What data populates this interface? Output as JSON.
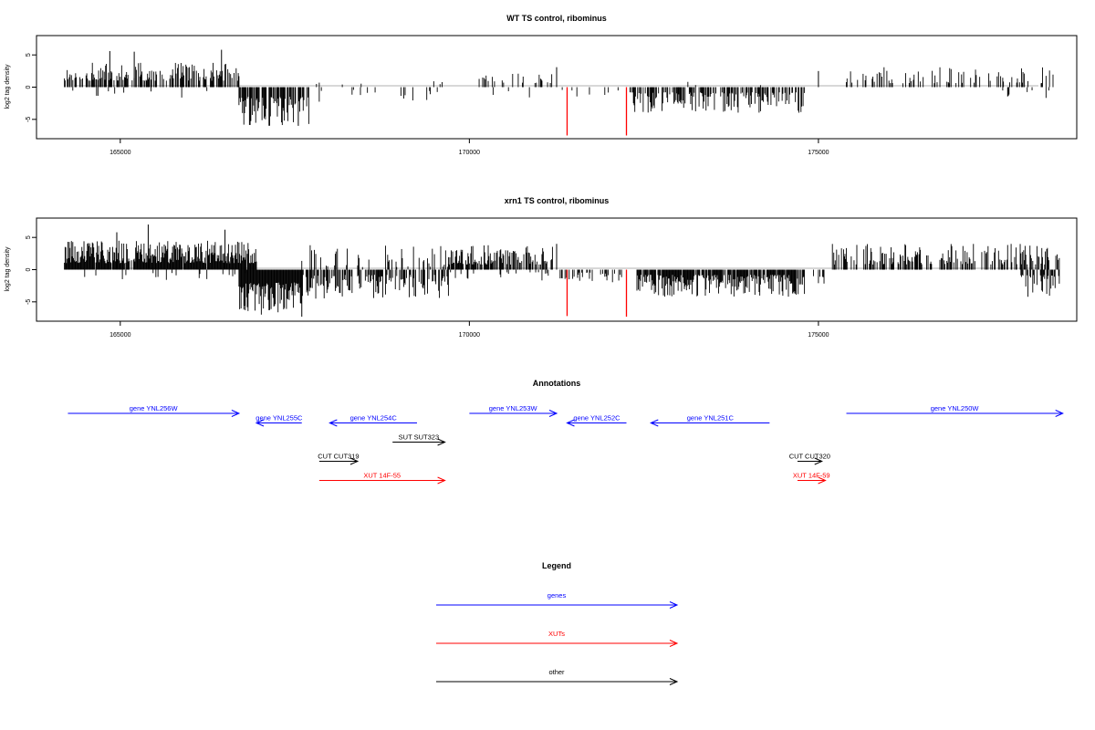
{
  "chart_data": [
    {
      "type": "bar",
      "title": "WT TS control, ribominus",
      "ylabel": "log2 tag density",
      "xlim": [
        163800,
        178700
      ],
      "ylim": [
        -8,
        8
      ],
      "xticks": [
        165000,
        170000,
        175000
      ],
      "xtick_labels": [
        "165000",
        "170000",
        "175000"
      ],
      "yticks": [
        -5,
        0,
        5
      ],
      "ytick_labels": [
        "-5",
        "0",
        "5"
      ],
      "grid": false,
      "colors": {
        "default": "#000000",
        "highlight": "#ff0000"
      },
      "tracks": [
        {
          "start": 164200,
          "end": 166700,
          "sign": 1,
          "density": 0.6,
          "min": 1,
          "max": 3.8,
          "seed": 11
        },
        {
          "start": 164300,
          "end": 166700,
          "sign": -1,
          "density": 0.04,
          "min": 0.5,
          "max": 1.8,
          "seed": 12
        },
        {
          "start": 166700,
          "end": 167700,
          "sign": -1,
          "density": 0.75,
          "min": 1.5,
          "max": 6.0,
          "seed": 13
        },
        {
          "start": 167700,
          "end": 169700,
          "sign": -1,
          "density": 0.08,
          "min": 0.4,
          "max": 2.8,
          "seed": 14
        },
        {
          "start": 167700,
          "end": 169700,
          "sign": 1,
          "density": 0.03,
          "min": 0.4,
          "max": 1.2,
          "seed": 15
        },
        {
          "start": 170100,
          "end": 171200,
          "sign": 1,
          "density": 0.18,
          "min": 0.6,
          "max": 2.2,
          "seed": 16
        },
        {
          "start": 170100,
          "end": 171200,
          "sign": -1,
          "density": 0.05,
          "min": 0.4,
          "max": 1.6,
          "seed": 17
        },
        {
          "start": 171200,
          "end": 172200,
          "sign": -1,
          "density": 0.05,
          "min": 0.4,
          "max": 1.5,
          "seed": 18
        },
        {
          "start": 172300,
          "end": 174800,
          "sign": -1,
          "density": 0.55,
          "min": 0.8,
          "max": 4.0,
          "seed": 19
        },
        {
          "start": 172300,
          "end": 174800,
          "sign": 1,
          "density": 0.02,
          "min": 0.3,
          "max": 1.0,
          "seed": 20
        },
        {
          "start": 175400,
          "end": 178450,
          "sign": 1,
          "density": 0.25,
          "min": 0.6,
          "max": 3.3,
          "seed": 21
        },
        {
          "start": 177600,
          "end": 178450,
          "sign": -1,
          "density": 0.12,
          "min": 0.5,
          "max": 1.8,
          "seed": 22
        }
      ],
      "spikes": [
        {
          "x": 166450,
          "y": 5.8
        },
        {
          "x": 165200,
          "y": 5.5
        },
        {
          "x": 164850,
          "y": 5.6
        },
        {
          "x": 167550,
          "y": -6.0
        },
        {
          "x": 171250,
          "y": 3.1
        },
        {
          "x": 175000,
          "y": 2.5
        },
        {
          "x": 171400,
          "y": -7.5,
          "color": "highlight"
        },
        {
          "x": 172250,
          "y": -7.5,
          "color": "highlight"
        }
      ]
    },
    {
      "type": "bar",
      "title": "xrn1 TS control, ribominus",
      "ylabel": "log2 tag density",
      "xlim": [
        163800,
        178700
      ],
      "ylim": [
        -8,
        8
      ],
      "xticks": [
        165000,
        170000,
        175000
      ],
      "xtick_labels": [
        "165000",
        "170000",
        "175000"
      ],
      "yticks": [
        -5,
        0,
        5
      ],
      "ytick_labels": [
        "-5",
        "0",
        "5"
      ],
      "grid": false,
      "colors": {
        "default": "#000000",
        "highlight": "#ff0000"
      },
      "tracks": [
        {
          "start": 164200,
          "end": 166950,
          "sign": 1,
          "density": 0.95,
          "min": 1,
          "max": 4.5,
          "seed": 31
        },
        {
          "start": 164300,
          "end": 166950,
          "sign": -1,
          "density": 0.06,
          "min": 0.5,
          "max": 1.8,
          "seed": 32
        },
        {
          "start": 166700,
          "end": 167600,
          "sign": -1,
          "density": 0.95,
          "min": 2.0,
          "max": 7.0,
          "seed": 33
        },
        {
          "start": 167600,
          "end": 169700,
          "sign": -1,
          "density": 0.6,
          "min": 0.8,
          "max": 4.5,
          "seed": 34
        },
        {
          "start": 167600,
          "end": 169700,
          "sign": 1,
          "density": 0.25,
          "min": 0.4,
          "max": 3.8,
          "seed": 35
        },
        {
          "start": 169700,
          "end": 171200,
          "sign": 1,
          "density": 0.65,
          "min": 0.8,
          "max": 3.8,
          "seed": 36
        },
        {
          "start": 169700,
          "end": 171200,
          "sign": -1,
          "density": 0.1,
          "min": 0.4,
          "max": 1.8,
          "seed": 37
        },
        {
          "start": 171300,
          "end": 172200,
          "sign": -1,
          "density": 0.35,
          "min": 0.4,
          "max": 2.0,
          "seed": 38
        },
        {
          "start": 172400,
          "end": 174800,
          "sign": -1,
          "density": 0.85,
          "min": 0.8,
          "max": 4.2,
          "seed": 39
        },
        {
          "start": 174900,
          "end": 175100,
          "sign": -1,
          "density": 0.2,
          "min": 1.0,
          "max": 3.0,
          "seed": 40
        },
        {
          "start": 175200,
          "end": 178450,
          "sign": 1,
          "density": 0.45,
          "min": 0.8,
          "max": 4.0,
          "seed": 41
        },
        {
          "start": 177900,
          "end": 178450,
          "sign": -1,
          "density": 0.6,
          "min": 0.8,
          "max": 4.5,
          "seed": 42
        }
      ],
      "spikes": [
        {
          "x": 165400,
          "y": 7.0
        },
        {
          "x": 164950,
          "y": 5.8
        },
        {
          "x": 166500,
          "y": 6.2
        },
        {
          "x": 167600,
          "y": -7.3
        },
        {
          "x": 171250,
          "y": 4.0
        },
        {
          "x": 171400,
          "y": -7.2,
          "color": "highlight"
        },
        {
          "x": 172250,
          "y": -7.3,
          "color": "highlight"
        }
      ]
    },
    {
      "type": "annotation",
      "title": "Annotations",
      "xlim": [
        163800,
        178700
      ],
      "colors": {
        "genes": "#0000ff",
        "XUTs": "#ff0000",
        "other": "#000000"
      },
      "features": [
        {
          "label": "gene YNL256W",
          "start": 164250,
          "end": 166700,
          "strand": "+",
          "row": 0,
          "cls": "genes"
        },
        {
          "label": "gene YNL255C",
          "start": 166950,
          "end": 167600,
          "strand": "-",
          "row": 1,
          "cls": "genes"
        },
        {
          "label": "gene YNL254C",
          "start": 168000,
          "end": 169250,
          "strand": "-",
          "row": 1,
          "cls": "genes"
        },
        {
          "label": "gene YNL253W",
          "start": 170000,
          "end": 171250,
          "strand": "+",
          "row": 0,
          "cls": "genes"
        },
        {
          "label": "gene YNL252C",
          "start": 171400,
          "end": 172250,
          "strand": "-",
          "row": 1,
          "cls": "genes"
        },
        {
          "label": "gene YNL251C",
          "start": 172600,
          "end": 174300,
          "strand": "-",
          "row": 1,
          "cls": "genes"
        },
        {
          "label": "gene YNL250W",
          "start": 175400,
          "end": 178500,
          "strand": "+",
          "row": 0,
          "cls": "genes"
        },
        {
          "label": "SUT SUT323",
          "start": 168900,
          "end": 169650,
          "strand": "+",
          "row": 3,
          "cls": "other"
        },
        {
          "label": "CUT CUT319",
          "start": 167850,
          "end": 168400,
          "strand": "+",
          "row": 5,
          "cls": "other"
        },
        {
          "label": "CUT CUT320",
          "start": 174700,
          "end": 175050,
          "strand": "+",
          "row": 5,
          "cls": "other"
        },
        {
          "label": "XUT 14F-55",
          "start": 167850,
          "end": 169650,
          "strand": "+",
          "row": 7,
          "cls": "XUTs"
        },
        {
          "label": "XUT 14F-59",
          "start": 174700,
          "end": 175100,
          "strand": "+",
          "row": 7,
          "cls": "XUTs"
        }
      ]
    },
    {
      "type": "legend",
      "title": "Legend",
      "entries": [
        {
          "label": "genes",
          "color": "#0000ff"
        },
        {
          "label": "XUTs",
          "color": "#ff0000"
        },
        {
          "label": "other",
          "color": "#000000"
        }
      ]
    }
  ]
}
